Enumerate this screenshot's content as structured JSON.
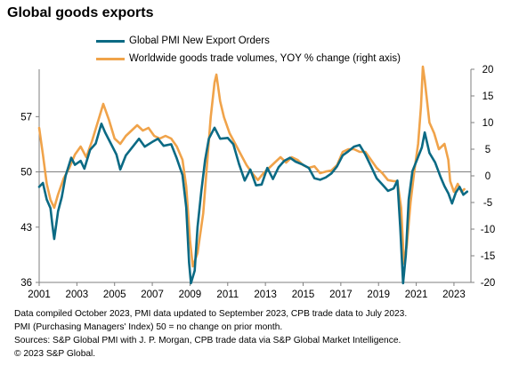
{
  "chart_data": {
    "type": "line",
    "title": "Global goods exports",
    "x_range": [
      2001,
      2023.9
    ],
    "x_ticks": [
      "2001",
      "2003",
      "2005",
      "2007",
      "2009",
      "2011",
      "2013",
      "2015",
      "2017",
      "2019",
      "2021",
      "2023"
    ],
    "left_axis": {
      "ticks": [
        "36",
        "43",
        "50",
        "57"
      ],
      "range": [
        36,
        63
      ]
    },
    "right_axis": {
      "ticks": [
        "20",
        "15",
        "10",
        "5",
        "0",
        "-5",
        "-10",
        "-15",
        "-20"
      ],
      "range": [
        -20,
        20
      ]
    },
    "reference_line": {
      "axis": "left",
      "value": 50
    },
    "grid": false,
    "legend_position": "top",
    "series": [
      {
        "name": "Global PMI New Export Orders",
        "axis": "left",
        "color": "#0b6a84",
        "points": [
          [
            2001.0,
            48.1
          ],
          [
            2001.2,
            48.6
          ],
          [
            2001.4,
            46.5
          ],
          [
            2001.6,
            45.4
          ],
          [
            2001.7,
            43.3
          ],
          [
            2001.8,
            41.5
          ],
          [
            2002.0,
            45.0
          ],
          [
            2002.2,
            46.8
          ],
          [
            2002.4,
            49.5
          ],
          [
            2002.7,
            51.8
          ],
          [
            2002.9,
            50.9
          ],
          [
            2003.2,
            51.4
          ],
          [
            2003.4,
            50.4
          ],
          [
            2003.7,
            52.8
          ],
          [
            2004.0,
            53.6
          ],
          [
            2004.3,
            56.1
          ],
          [
            2004.5,
            55.0
          ],
          [
            2004.8,
            53.6
          ],
          [
            2005.1,
            52.2
          ],
          [
            2005.3,
            50.3
          ],
          [
            2005.6,
            52.1
          ],
          [
            2006.0,
            53.3
          ],
          [
            2006.3,
            54.2
          ],
          [
            2006.6,
            53.2
          ],
          [
            2007.0,
            53.8
          ],
          [
            2007.3,
            54.2
          ],
          [
            2007.6,
            53.3
          ],
          [
            2008.0,
            53.5
          ],
          [
            2008.3,
            51.7
          ],
          [
            2008.6,
            49.6
          ],
          [
            2008.8,
            45.5
          ],
          [
            2008.95,
            38.5
          ],
          [
            2009.05,
            35.9
          ],
          [
            2009.25,
            37.5
          ],
          [
            2009.4,
            43.0
          ],
          [
            2009.6,
            47.5
          ],
          [
            2009.8,
            51.5
          ],
          [
            2010.0,
            54.2
          ],
          [
            2010.3,
            55.6
          ],
          [
            2010.6,
            54.2
          ],
          [
            2011.0,
            54.3
          ],
          [
            2011.3,
            53.5
          ],
          [
            2011.6,
            51.0
          ],
          [
            2011.9,
            48.9
          ],
          [
            2012.2,
            50.3
          ],
          [
            2012.5,
            48.3
          ],
          [
            2012.8,
            48.4
          ],
          [
            2013.1,
            50.5
          ],
          [
            2013.4,
            49.1
          ],
          [
            2013.7,
            50.6
          ],
          [
            2014.0,
            51.4
          ],
          [
            2014.3,
            51.8
          ],
          [
            2014.6,
            51.3
          ],
          [
            2015.0,
            50.9
          ],
          [
            2015.3,
            50.5
          ],
          [
            2015.6,
            49.2
          ],
          [
            2015.9,
            49.0
          ],
          [
            2016.2,
            49.3
          ],
          [
            2016.5,
            49.8
          ],
          [
            2016.8,
            50.7
          ],
          [
            2017.1,
            52.1
          ],
          [
            2017.4,
            52.6
          ],
          [
            2017.7,
            53.2
          ],
          [
            2018.0,
            53.4
          ],
          [
            2018.3,
            52.2
          ],
          [
            2018.6,
            50.7
          ],
          [
            2018.9,
            49.2
          ],
          [
            2019.2,
            48.4
          ],
          [
            2019.5,
            47.6
          ],
          [
            2019.8,
            47.9
          ],
          [
            2020.0,
            48.9
          ],
          [
            2020.15,
            43.0
          ],
          [
            2020.3,
            35.9
          ],
          [
            2020.45,
            39.5
          ],
          [
            2020.6,
            46.5
          ],
          [
            2020.8,
            50.1
          ],
          [
            2021.0,
            51.3
          ],
          [
            2021.3,
            53.1
          ],
          [
            2021.45,
            55.0
          ],
          [
            2021.7,
            52.4
          ],
          [
            2022.0,
            51.2
          ],
          [
            2022.3,
            49.3
          ],
          [
            2022.5,
            48.2
          ],
          [
            2022.7,
            47.3
          ],
          [
            2022.9,
            46.0
          ],
          [
            2023.1,
            47.4
          ],
          [
            2023.3,
            48.1
          ],
          [
            2023.5,
            47.1
          ],
          [
            2023.7,
            47.5
          ]
        ]
      },
      {
        "name": "Worldwide goods trade volumes, YOY % change (right axis)",
        "axis": "right",
        "color": "#f0a34a",
        "points": [
          [
            2001.0,
            9.0
          ],
          [
            2001.2,
            4.0
          ],
          [
            2001.4,
            -1.5
          ],
          [
            2001.6,
            -4.5
          ],
          [
            2001.8,
            -6.0
          ],
          [
            2002.0,
            -3.5
          ],
          [
            2002.3,
            -0.5
          ],
          [
            2002.6,
            1.5
          ],
          [
            2002.9,
            4.0
          ],
          [
            2003.2,
            5.5
          ],
          [
            2003.5,
            3.5
          ],
          [
            2003.8,
            6.5
          ],
          [
            2004.1,
            10.0
          ],
          [
            2004.4,
            13.5
          ],
          [
            2004.7,
            10.5
          ],
          [
            2005.0,
            7.0
          ],
          [
            2005.3,
            6.0
          ],
          [
            2005.6,
            7.5
          ],
          [
            2005.9,
            8.5
          ],
          [
            2006.2,
            9.5
          ],
          [
            2006.5,
            8.5
          ],
          [
            2006.8,
            9.0
          ],
          [
            2007.1,
            7.5
          ],
          [
            2007.4,
            7.0
          ],
          [
            2007.7,
            7.5
          ],
          [
            2008.0,
            7.0
          ],
          [
            2008.3,
            5.5
          ],
          [
            2008.6,
            3.0
          ],
          [
            2008.8,
            -2.0
          ],
          [
            2009.0,
            -12.0
          ],
          [
            2009.15,
            -17.0
          ],
          [
            2009.4,
            -14.5
          ],
          [
            2009.7,
            -7.0
          ],
          [
            2009.9,
            2.0
          ],
          [
            2010.1,
            11.0
          ],
          [
            2010.3,
            17.5
          ],
          [
            2010.4,
            19.0
          ],
          [
            2010.6,
            14.0
          ],
          [
            2010.8,
            11.0
          ],
          [
            2011.1,
            8.0
          ],
          [
            2011.4,
            6.0
          ],
          [
            2011.7,
            4.0
          ],
          [
            2012.0,
            2.0
          ],
          [
            2012.3,
            0.5
          ],
          [
            2012.6,
            -0.8
          ],
          [
            2012.9,
            0.5
          ],
          [
            2013.2,
            1.5
          ],
          [
            2013.5,
            2.5
          ],
          [
            2013.8,
            3.5
          ],
          [
            2014.1,
            2.5
          ],
          [
            2014.4,
            3.5
          ],
          [
            2014.7,
            3.0
          ],
          [
            2015.0,
            2.0
          ],
          [
            2015.3,
            1.5
          ],
          [
            2015.6,
            1.8
          ],
          [
            2015.9,
            0.5
          ],
          [
            2016.2,
            0.8
          ],
          [
            2016.5,
            1.0
          ],
          [
            2016.8,
            2.0
          ],
          [
            2017.1,
            4.5
          ],
          [
            2017.4,
            5.0
          ],
          [
            2017.7,
            5.0
          ],
          [
            2018.0,
            4.5
          ],
          [
            2018.3,
            4.5
          ],
          [
            2018.6,
            3.0
          ],
          [
            2018.9,
            1.5
          ],
          [
            2019.2,
            0.5
          ],
          [
            2019.5,
            -0.8
          ],
          [
            2019.8,
            -1.0
          ],
          [
            2020.0,
            -1.0
          ],
          [
            2020.2,
            -6.0
          ],
          [
            2020.35,
            -16.5
          ],
          [
            2020.5,
            -13.0
          ],
          [
            2020.7,
            -5.0
          ],
          [
            2020.9,
            1.0
          ],
          [
            2021.1,
            6.0
          ],
          [
            2021.25,
            13.0
          ],
          [
            2021.35,
            20.5
          ],
          [
            2021.45,
            18.0
          ],
          [
            2021.7,
            10.0
          ],
          [
            2021.95,
            8.0
          ],
          [
            2022.2,
            5.0
          ],
          [
            2022.5,
            6.0
          ],
          [
            2022.7,
            3.0
          ],
          [
            2022.8,
            -1.0
          ],
          [
            2023.0,
            -3.0
          ],
          [
            2023.2,
            -1.5
          ],
          [
            2023.4,
            -3.0
          ],
          [
            2023.55,
            -2.5
          ]
        ]
      }
    ]
  },
  "footnotes": [
    "Data compiled October 2023, PMI data updated to September 2023, CPB trade data to July 2023.",
    "PMI (Purchasing Managers' Index) 50 = no change on prior month.",
    "Sources: S&P Global PMI with J. P. Morgan, CPB trade data via S&P Global Market Intelligence.",
    "© 2023 S&P Global."
  ]
}
